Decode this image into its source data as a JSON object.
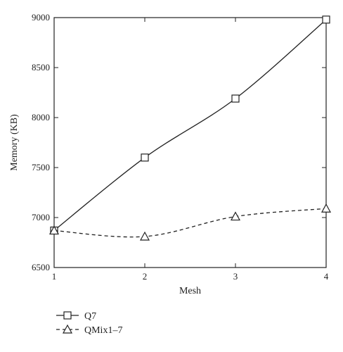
{
  "chart_data": {
    "type": "line",
    "title": "",
    "xlabel": "Mesh",
    "ylabel": "Memory (KB)",
    "x": [
      1,
      2,
      3,
      4
    ],
    "xlim": [
      1,
      4
    ],
    "ylim": [
      6500,
      9000
    ],
    "xticks": [
      "1",
      "2",
      "3",
      "4"
    ],
    "yticks": [
      "6500",
      "7000",
      "7500",
      "8000",
      "8500",
      "9000"
    ],
    "grid": false,
    "legend_position": "bottom-left",
    "series": [
      {
        "name": "Q7",
        "values": [
          6870,
          7600,
          8190,
          8980
        ],
        "marker": "square",
        "line": "solid",
        "color": "#222222"
      },
      {
        "name": "QMix1–7",
        "values": [
          6870,
          6810,
          7010,
          7090
        ],
        "marker": "triangle",
        "line": "dashed",
        "color": "#222222"
      }
    ]
  }
}
